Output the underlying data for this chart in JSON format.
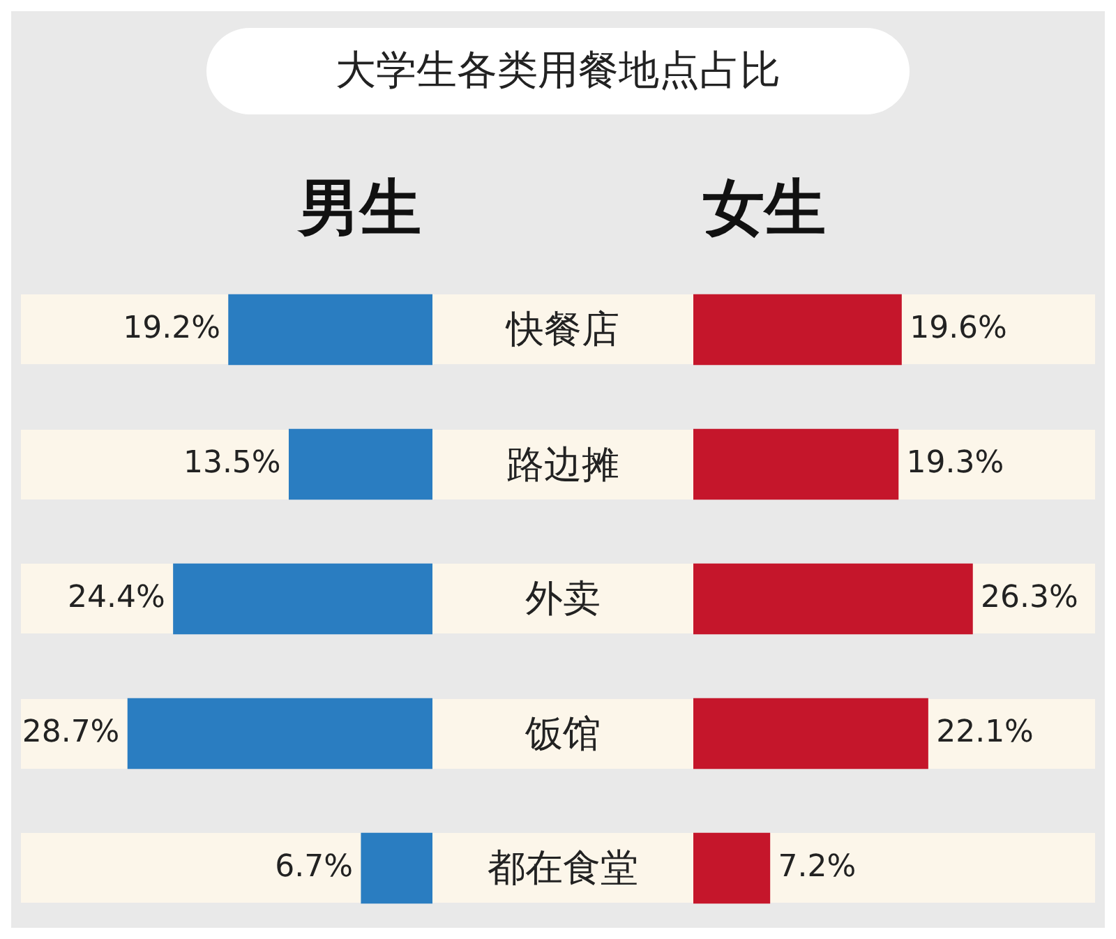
{
  "chart_data": [
    {
      "type": "bar",
      "orientation": "horizontal",
      "title": "大学生各类用餐地点占比",
      "categories": [
        "快餐店",
        "路边摊",
        "外卖",
        "饭馆",
        "都在食堂"
      ],
      "series": [
        {
          "name": "男生",
          "color": "#2a7dc1",
          "values": [
            19.2,
            13.5,
            24.4,
            28.7,
            6.7
          ],
          "value_labels": [
            "19.2%",
            "13.5%",
            "24.4%",
            "28.7%",
            "6.7%"
          ]
        }
      ]
    },
    {
      "type": "bar",
      "orientation": "horizontal",
      "categories": [
        null,
        null,
        null,
        null,
        null
      ],
      "series": [
        {
          "name": "女生",
          "color": "#c5162b",
          "values": [
            19.6,
            19.3,
            26.3,
            22.1,
            7.2
          ],
          "value_labels": [
            "19.6%",
            "19.3%",
            "26.3%",
            "22.1%",
            "7.2%"
          ]
        }
      ]
    }
  ]
}
